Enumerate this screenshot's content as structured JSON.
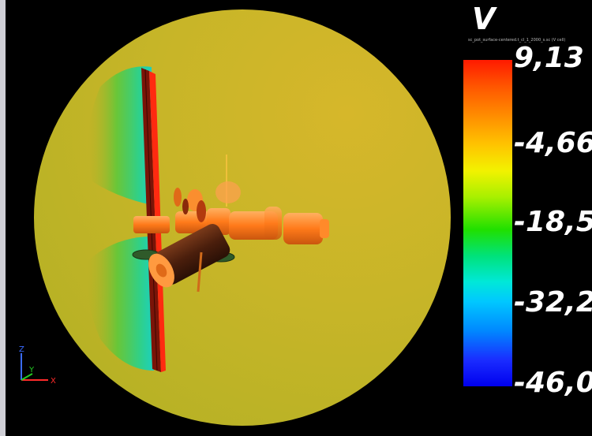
{
  "legend": {
    "title": "V",
    "subtitle": "sc_pot_surface-centered.t_cl_1_2000_s.sc (V cell)",
    "ticks": [
      "9,13",
      "-4,66",
      "-18,5",
      "-32,2",
      "-46,0"
    ]
  },
  "axes": {
    "z": "Z",
    "y": "Y",
    "x": "X"
  },
  "colors": {
    "background": "#000000",
    "domain": "#c9b72a",
    "high": "#ff1a00",
    "low": "#0000ee"
  }
}
